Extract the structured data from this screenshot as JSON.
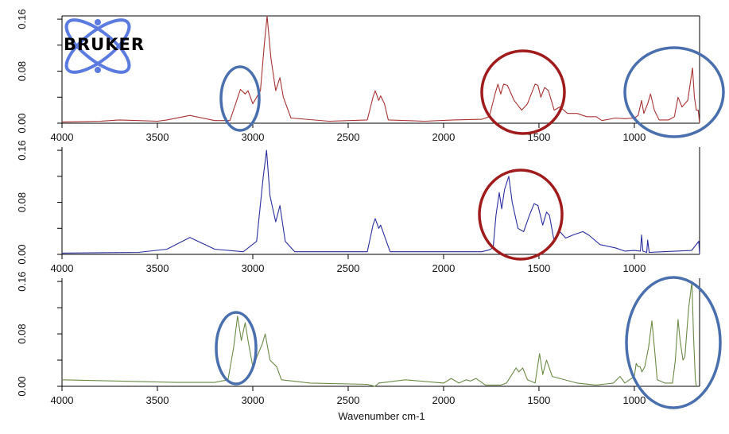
{
  "logo": {
    "text": "BRUKER",
    "color": "#5b7be0"
  },
  "annotation_colors": {
    "blue": "#4a6fae",
    "red": "#a01c1c"
  },
  "chart_data": [
    {
      "type": "line",
      "xlabel": "",
      "xlim": [
        4000,
        658
      ],
      "ylim": [
        0,
        0.165
      ],
      "x_ticks": [
        "4000",
        "3500",
        "3000",
        "2500",
        "2000",
        "1500",
        "1000"
      ],
      "y_ticks": [
        "0.00",
        "0.08",
        "0.16"
      ],
      "grid": false,
      "color": "#a83232",
      "points": [
        [
          4000,
          0.002
        ],
        [
          3800,
          0.003
        ],
        [
          3700,
          0.005
        ],
        [
          3600,
          0.004
        ],
        [
          3500,
          0.003
        ],
        [
          3450,
          0.005
        ],
        [
          3330,
          0.012
        ],
        [
          3200,
          0.004
        ],
        [
          3120,
          0.004
        ],
        [
          3090,
          0.03
        ],
        [
          3065,
          0.052
        ],
        [
          3040,
          0.045
        ],
        [
          3025,
          0.05
        ],
        [
          3000,
          0.03
        ],
        [
          2960,
          0.05
        ],
        [
          2940,
          0.12
        ],
        [
          2925,
          0.165
        ],
        [
          2905,
          0.1
        ],
        [
          2880,
          0.05
        ],
        [
          2858,
          0.07
        ],
        [
          2840,
          0.04
        ],
        [
          2800,
          0.008
        ],
        [
          2600,
          0.003
        ],
        [
          2400,
          0.005
        ],
        [
          2370,
          0.04
        ],
        [
          2358,
          0.05
        ],
        [
          2340,
          0.035
        ],
        [
          2330,
          0.042
        ],
        [
          2310,
          0.03
        ],
        [
          2290,
          0.005
        ],
        [
          2100,
          0.003
        ],
        [
          1950,
          0.005
        ],
        [
          1800,
          0.006
        ],
        [
          1760,
          0.01
        ],
        [
          1730,
          0.045
        ],
        [
          1715,
          0.06
        ],
        [
          1700,
          0.045
        ],
        [
          1685,
          0.06
        ],
        [
          1665,
          0.058
        ],
        [
          1630,
          0.035
        ],
        [
          1590,
          0.02
        ],
        [
          1560,
          0.03
        ],
        [
          1520,
          0.06
        ],
        [
          1505,
          0.058
        ],
        [
          1490,
          0.04
        ],
        [
          1470,
          0.055
        ],
        [
          1450,
          0.05
        ],
        [
          1420,
          0.02
        ],
        [
          1390,
          0.025
        ],
        [
          1350,
          0.015
        ],
        [
          1300,
          0.015
        ],
        [
          1250,
          0.01
        ],
        [
          1200,
          0.01
        ],
        [
          1170,
          0.004
        ],
        [
          1100,
          0.008
        ],
        [
          1050,
          0.007
        ],
        [
          1000,
          0.008
        ],
        [
          980,
          0.012
        ],
        [
          962,
          0.035
        ],
        [
          950,
          0.015
        ],
        [
          930,
          0.03
        ],
        [
          915,
          0.045
        ],
        [
          895,
          0.02
        ],
        [
          870,
          0.005
        ],
        [
          820,
          0.005
        ],
        [
          790,
          0.01
        ],
        [
          771,
          0.04
        ],
        [
          750,
          0.025
        ],
        [
          720,
          0.035
        ],
        [
          695,
          0.085
        ],
        [
          685,
          0.04
        ],
        [
          675,
          0.02
        ],
        [
          665,
          0.02
        ],
        [
          658,
          0.0
        ]
      ]
    },
    {
      "type": "line",
      "xlabel": "",
      "xlim": [
        4000,
        658
      ],
      "ylim": [
        0,
        0.165
      ],
      "x_ticks": [
        "4000",
        "3500",
        "3000",
        "2500",
        "2000",
        "1500",
        "1000"
      ],
      "y_ticks": [
        "0.00",
        "0.08",
        "0.16"
      ],
      "grid": false,
      "color": "#2a2ea0",
      "points": [
        [
          4000,
          0.002
        ],
        [
          3600,
          0.003
        ],
        [
          3450,
          0.008
        ],
        [
          3330,
          0.026
        ],
        [
          3200,
          0.008
        ],
        [
          3050,
          0.004
        ],
        [
          2980,
          0.02
        ],
        [
          2945,
          0.12
        ],
        [
          2928,
          0.16
        ],
        [
          2910,
          0.09
        ],
        [
          2880,
          0.05
        ],
        [
          2858,
          0.075
        ],
        [
          2830,
          0.02
        ],
        [
          2780,
          0.004
        ],
        [
          2400,
          0.004
        ],
        [
          2370,
          0.045
        ],
        [
          2358,
          0.055
        ],
        [
          2340,
          0.04
        ],
        [
          2330,
          0.045
        ],
        [
          2300,
          0.02
        ],
        [
          2280,
          0.004
        ],
        [
          1800,
          0.004
        ],
        [
          1760,
          0.007
        ],
        [
          1740,
          0.01
        ],
        [
          1725,
          0.06
        ],
        [
          1708,
          0.095
        ],
        [
          1695,
          0.07
        ],
        [
          1680,
          0.1
        ],
        [
          1658,
          0.12
        ],
        [
          1640,
          0.08
        ],
        [
          1610,
          0.04
        ],
        [
          1580,
          0.035
        ],
        [
          1550,
          0.06
        ],
        [
          1525,
          0.078
        ],
        [
          1505,
          0.075
        ],
        [
          1480,
          0.045
        ],
        [
          1460,
          0.065
        ],
        [
          1445,
          0.06
        ],
        [
          1420,
          0.02
        ],
        [
          1390,
          0.035
        ],
        [
          1360,
          0.025
        ],
        [
          1320,
          0.03
        ],
        [
          1270,
          0.035
        ],
        [
          1240,
          0.03
        ],
        [
          1180,
          0.015
        ],
        [
          1100,
          0.01
        ],
        [
          1050,
          0.005
        ],
        [
          1000,
          0.006
        ],
        [
          968,
          0.005
        ],
        [
          962,
          0.03
        ],
        [
          955,
          0.005
        ],
        [
          935,
          0.003
        ],
        [
          930,
          0.022
        ],
        [
          922,
          0.003
        ],
        [
          850,
          0.004
        ],
        [
          700,
          0.006
        ],
        [
          662,
          0.02
        ],
        [
          658,
          0.0
        ]
      ]
    },
    {
      "type": "line",
      "xlabel": "Wavenumber cm-1",
      "xlim": [
        4000,
        658
      ],
      "ylim": [
        0,
        0.165
      ],
      "x_ticks": [
        "4000",
        "3500",
        "3000",
        "2500",
        "2000",
        "1500",
        "1000"
      ],
      "y_ticks": [
        "0.00",
        "0.08",
        "0.16"
      ],
      "grid": false,
      "color": "#6b8a45",
      "points": [
        [
          4000,
          0.01
        ],
        [
          3700,
          0.008
        ],
        [
          3400,
          0.006
        ],
        [
          3200,
          0.006
        ],
        [
          3130,
          0.01
        ],
        [
          3100,
          0.06
        ],
        [
          3080,
          0.107
        ],
        [
          3060,
          0.07
        ],
        [
          3040,
          0.097
        ],
        [
          3025,
          0.07
        ],
        [
          3000,
          0.03
        ],
        [
          2950,
          0.065
        ],
        [
          2935,
          0.08
        ],
        [
          2910,
          0.04
        ],
        [
          2875,
          0.03
        ],
        [
          2850,
          0.01
        ],
        [
          2700,
          0.005
        ],
        [
          2400,
          0.003
        ],
        [
          2360,
          0.0
        ],
        [
          2340,
          0.005
        ],
        [
          2200,
          0.01
        ],
        [
          2000,
          0.005
        ],
        [
          1960,
          0.012
        ],
        [
          1920,
          0.005
        ],
        [
          1880,
          0.01
        ],
        [
          1860,
          0.008
        ],
        [
          1830,
          0.012
        ],
        [
          1780,
          0.002
        ],
        [
          1700,
          0.002
        ],
        [
          1670,
          0.005
        ],
        [
          1620,
          0.028
        ],
        [
          1605,
          0.022
        ],
        [
          1585,
          0.028
        ],
        [
          1560,
          0.01
        ],
        [
          1520,
          0.005
        ],
        [
          1497,
          0.05
        ],
        [
          1480,
          0.018
        ],
        [
          1460,
          0.04
        ],
        [
          1430,
          0.015
        ],
        [
          1300,
          0.005
        ],
        [
          1200,
          0.002
        ],
        [
          1110,
          0.005
        ],
        [
          1075,
          0.015
        ],
        [
          1050,
          0.005
        ],
        [
          1000,
          0.015
        ],
        [
          990,
          0.035
        ],
        [
          980,
          0.03
        ],
        [
          970,
          0.03
        ],
        [
          960,
          0.022
        ],
        [
          945,
          0.03
        ],
        [
          925,
          0.06
        ],
        [
          908,
          0.1
        ],
        [
          895,
          0.06
        ],
        [
          880,
          0.01
        ],
        [
          840,
          0.005
        ],
        [
          800,
          0.005
        ],
        [
          785,
          0.04
        ],
        [
          771,
          0.102
        ],
        [
          760,
          0.07
        ],
        [
          745,
          0.04
        ],
        [
          735,
          0.045
        ],
        [
          715,
          0.12
        ],
        [
          698,
          0.16
        ],
        [
          690,
          0.08
        ],
        [
          680,
          0.01
        ],
        [
          675,
          0.0
        ]
      ]
    }
  ]
}
